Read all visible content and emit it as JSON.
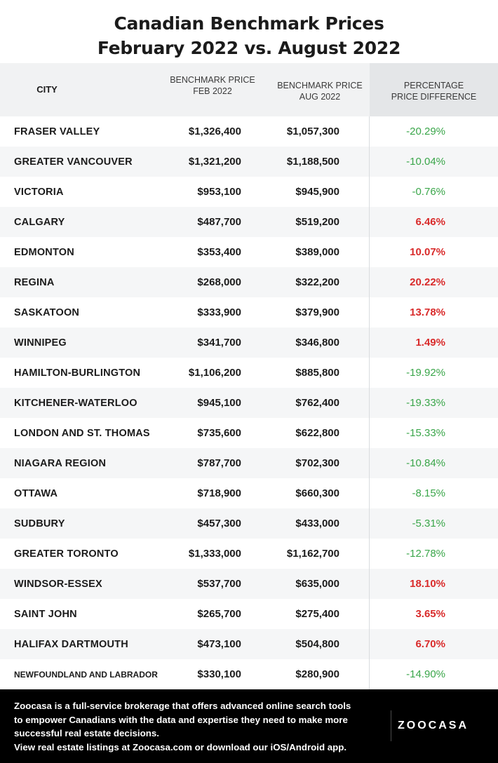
{
  "chart_data": {
    "type": "table",
    "title_line1": "Canadian Benchmark Prices",
    "title_line2": "February 2022 vs. August 2022",
    "columns": {
      "city": "CITY",
      "feb": "BENCHMARK PRICE FEB 2022",
      "aug": "BENCHMARK PRICE AUG 2022",
      "pct": "PERCENTAGE PRICE DIFFERENCE"
    },
    "header_lines": {
      "feb": [
        "BENCHMARK PRICE",
        "FEB 2022"
      ],
      "aug": [
        "BENCHMARK PRICE",
        "AUG 2022"
      ],
      "pct": [
        "PERCENTAGE",
        "PRICE DIFFERENCE"
      ]
    },
    "rows": [
      {
        "city": "FRASER VALLEY",
        "feb": "$1,326,400",
        "aug": "$1,057,300",
        "pct": "-20.29%"
      },
      {
        "city": "GREATER VANCOUVER",
        "feb": "$1,321,200",
        "aug": "$1,188,500",
        "pct": "-10.04%"
      },
      {
        "city": "VICTORIA",
        "feb": "$953,100",
        "aug": "$945,900",
        "pct": "-0.76%"
      },
      {
        "city": "CALGARY",
        "feb": "$487,700",
        "aug": "$519,200",
        "pct": "6.46%"
      },
      {
        "city": "EDMONTON",
        "feb": "$353,400",
        "aug": "$389,000",
        "pct": "10.07%"
      },
      {
        "city": "REGINA",
        "feb": "$268,000",
        "aug": "$322,200",
        "pct": "20.22%"
      },
      {
        "city": "SASKATOON",
        "feb": "$333,900",
        "aug": "$379,900",
        "pct": "13.78%"
      },
      {
        "city": "WINNIPEG",
        "feb": "$341,700",
        "aug": "$346,800",
        "pct": "1.49%"
      },
      {
        "city": "HAMILTON-BURLINGTON",
        "feb": "$1,106,200",
        "aug": "$885,800",
        "pct": "-19.92%"
      },
      {
        "city": "KITCHENER-WATERLOO",
        "feb": "$945,100",
        "aug": "$762,400",
        "pct": "-19.33%"
      },
      {
        "city": "LONDON AND ST. THOMAS",
        "feb": "$735,600",
        "aug": "$622,800",
        "pct": "-15.33%"
      },
      {
        "city": "NIAGARA REGION",
        "feb": "$787,700",
        "aug": "$702,300",
        "pct": "-10.84%"
      },
      {
        "city": "OTTAWA",
        "feb": "$718,900",
        "aug": "$660,300",
        "pct": "-8.15%"
      },
      {
        "city": "SUDBURY",
        "feb": "$457,300",
        "aug": "$433,000",
        "pct": "-5.31%"
      },
      {
        "city": "GREATER TORONTO",
        "feb": "$1,333,000",
        "aug": "$1,162,700",
        "pct": "-12.78%"
      },
      {
        "city": "WINDSOR-ESSEX",
        "feb": "$537,700",
        "aug": "$635,000",
        "pct": "18.10%"
      },
      {
        "city": "SAINT JOHN",
        "feb": "$265,700",
        "aug": "$275,400",
        "pct": "3.65%"
      },
      {
        "city": "HALIFAX DARTMOUTH",
        "feb": "$473,100",
        "aug": "$504,800",
        "pct": "6.70%"
      },
      {
        "city": "NEWFOUNDLAND AND LABRADOR",
        "feb": "$330,100",
        "aug": "$280,900",
        "pct": "-14.90%"
      }
    ],
    "colors": {
      "negative": "#3aa64a",
      "positive": "#d92b2b"
    }
  },
  "footer": {
    "lines": [
      "Zoocasa is a full-service brokerage that offers advanced online search tools",
      "to empower Canadians with the data and expertise they need to make more",
      "successful real estate decisions.",
      "View real estate listings at Zoocasa.com or download our iOS/Android app."
    ],
    "logo": "ZOOCASA"
  }
}
